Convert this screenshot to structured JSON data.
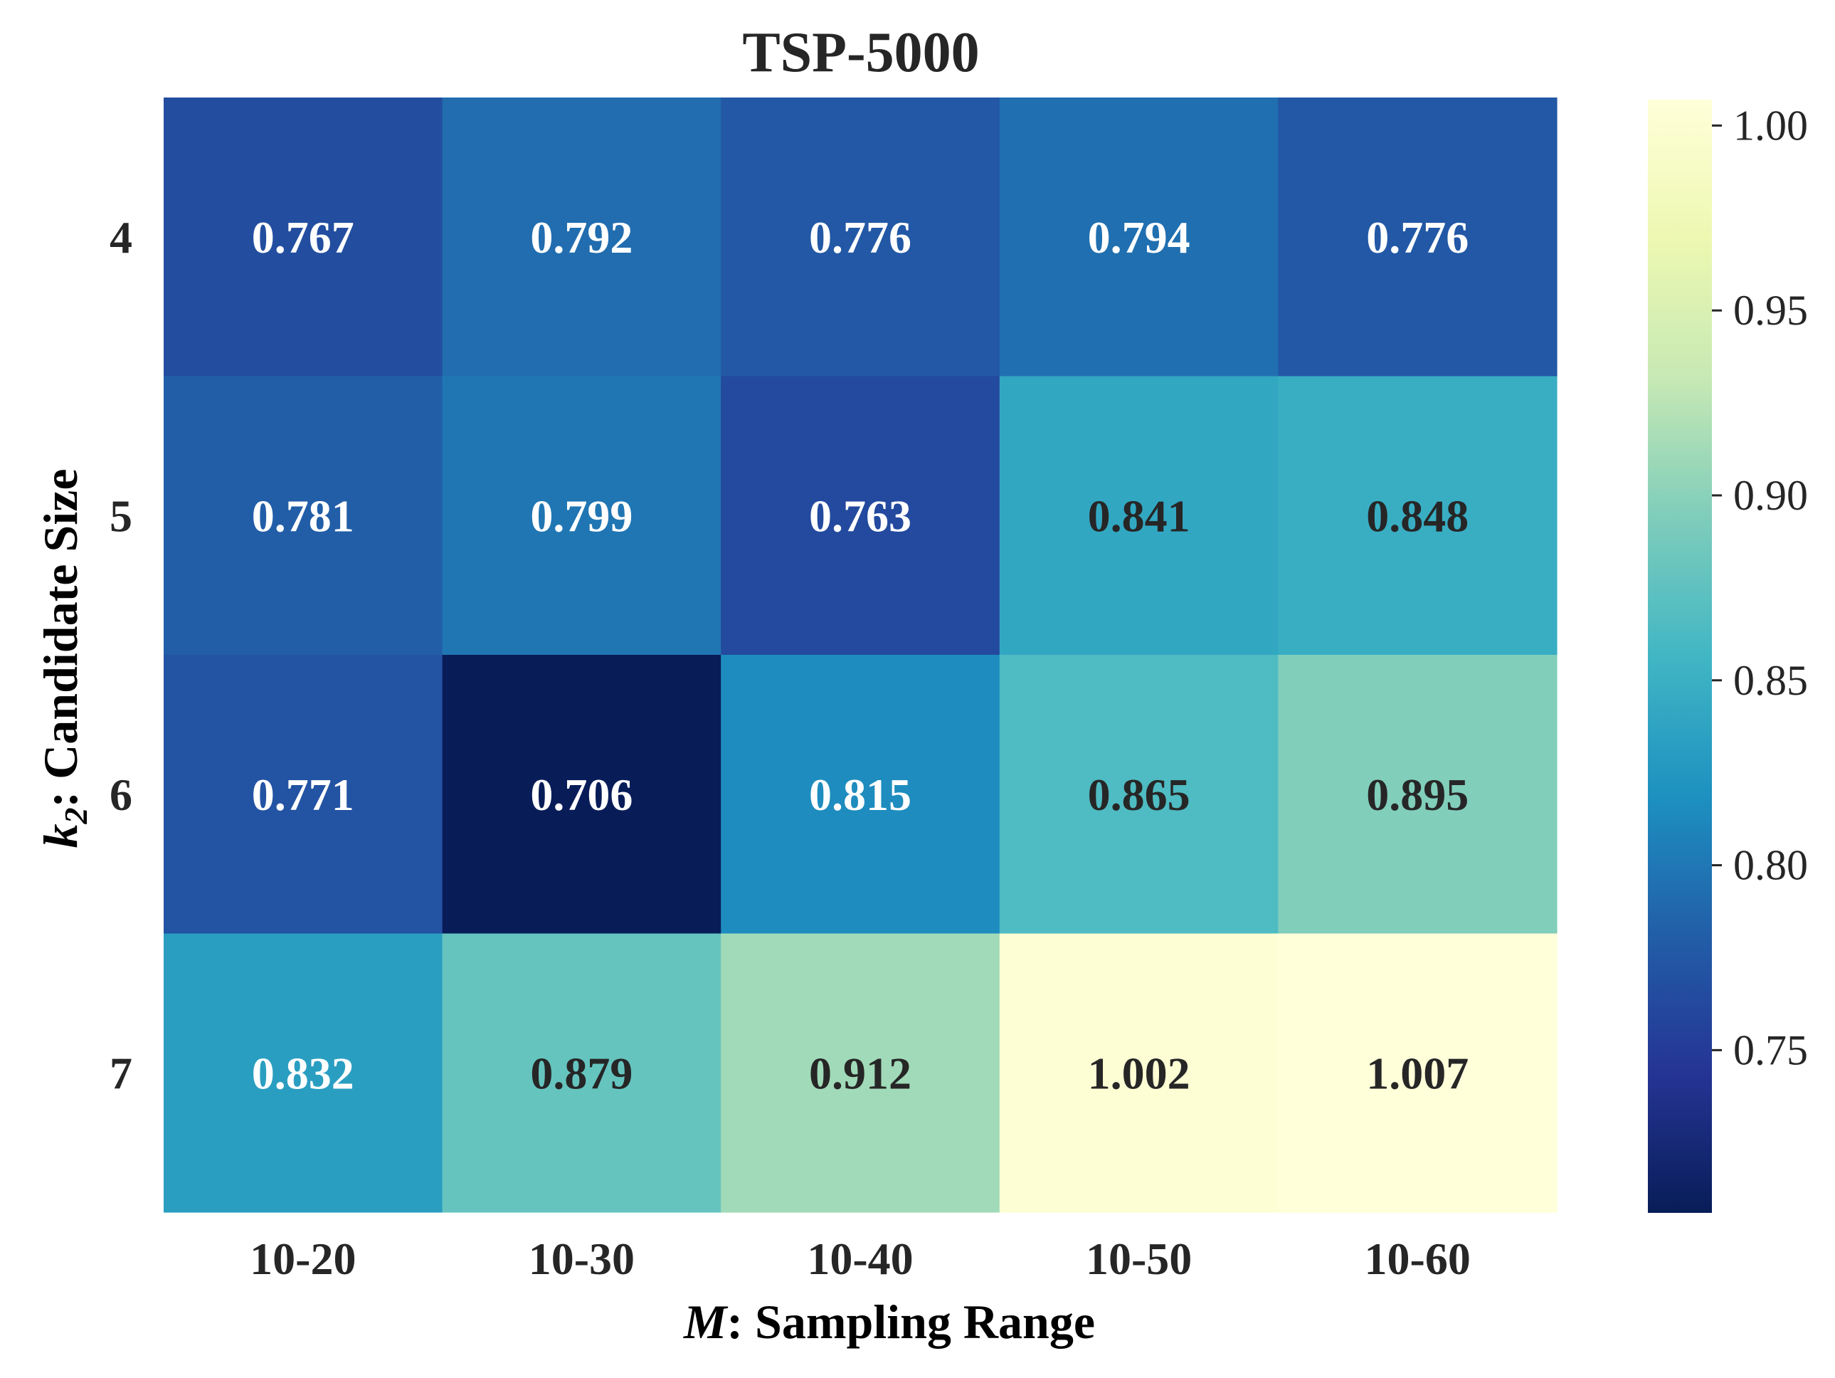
{
  "chart_data": {
    "type": "heatmap",
    "title": "TSP-5000",
    "xlabel": {
      "var": "M",
      "text": ": Sampling Range"
    },
    "ylabel": {
      "var": "k",
      "sub": "2",
      "text": ": Candidate Size"
    },
    "x_categories": [
      "10-20",
      "10-30",
      "10-40",
      "10-50",
      "10-60"
    ],
    "y_categories": [
      "4",
      "5",
      "6",
      "7"
    ],
    "values": [
      [
        0.767,
        0.792,
        0.776,
        0.794,
        0.776
      ],
      [
        0.781,
        0.799,
        0.763,
        0.841,
        0.848
      ],
      [
        0.771,
        0.706,
        0.815,
        0.865,
        0.895
      ],
      [
        0.832,
        0.879,
        0.912,
        1.002,
        1.007
      ]
    ],
    "value_labels": [
      [
        "0.767",
        "0.792",
        "0.776",
        "0.794",
        "0.776"
      ],
      [
        "0.781",
        "0.799",
        "0.763",
        "0.841",
        "0.848"
      ],
      [
        "0.771",
        "0.706",
        "0.815",
        "0.865",
        "0.895"
      ],
      [
        "0.832",
        "0.879",
        "0.912",
        "1.002",
        "1.007"
      ]
    ],
    "colormap": "YlGnBu",
    "vmin": 0.706,
    "vmax": 1.007,
    "colorbar": {
      "ticks": [
        0.75,
        0.8,
        0.85,
        0.9,
        0.95,
        1.0
      ],
      "tick_labels": [
        "0.75",
        "0.80",
        "0.85",
        "0.90",
        "0.95",
        "1.00"
      ],
      "placement": "right"
    },
    "annotation_colors": {
      "dark": "#262626",
      "light": "#ffffff"
    },
    "grid": false
  }
}
